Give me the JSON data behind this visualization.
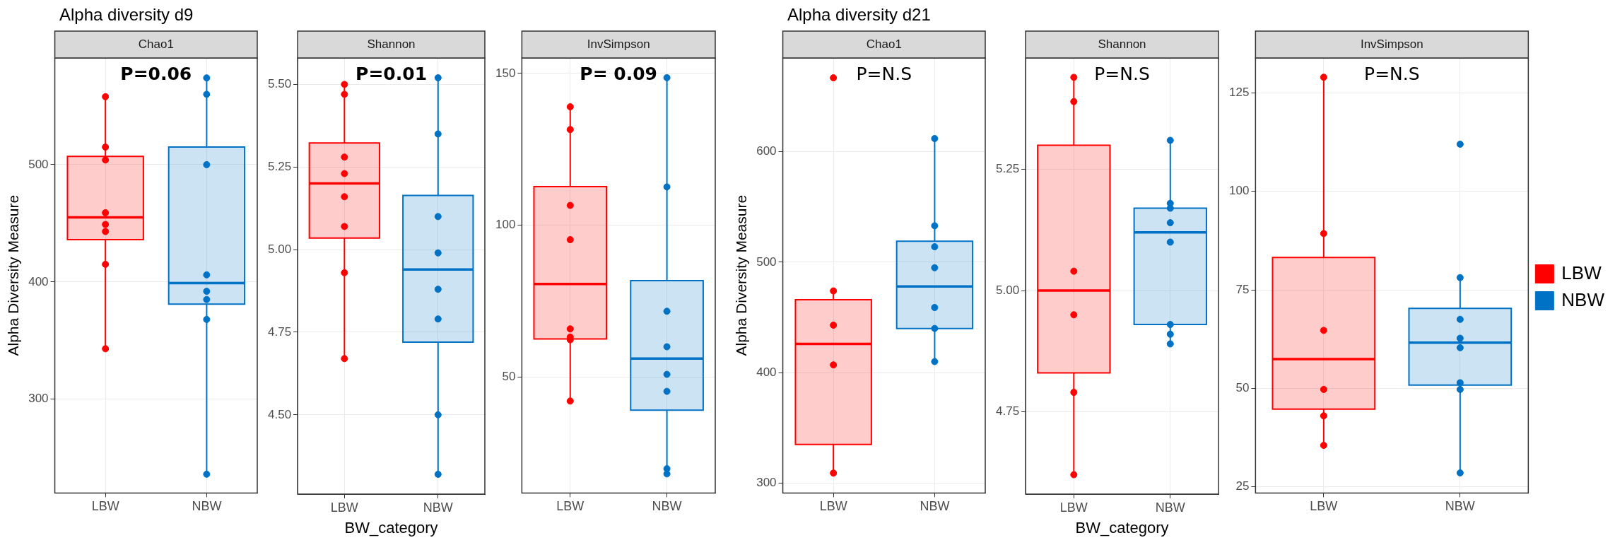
{
  "chart_data": [
    {
      "type": "box",
      "title": "Alpha diversity d9",
      "subtitle": "Chao1",
      "ylabel": "Alpha Diversity Measure",
      "categories": [
        "LBW",
        "NBW"
      ],
      "colors": [
        "#ff0000",
        "#0072c6"
      ],
      "boxes": [
        {
          "low": 343,
          "q1": 436,
          "median": 455,
          "q3": 507,
          "high": 558
        },
        {
          "low": 236,
          "q1": 381,
          "median": 399,
          "q3": 515,
          "high": 574
        }
      ],
      "series": [
        {
          "type": "scatter",
          "color": "#ff0000",
          "x": [
            "LBW",
            "LBW",
            "LBW",
            "LBW",
            "LBW",
            "LBW",
            "LBW",
            "LBW"
          ],
          "values": [
            558,
            515,
            504,
            459,
            449,
            443,
            415,
            343
          ]
        },
        {
          "type": "scatter",
          "color": "#0072c6",
          "x": [
            "NBW",
            "NBW",
            "NBW",
            "NBW",
            "NBW",
            "NBW",
            "NBW",
            "NBW"
          ],
          "values": [
            574,
            560,
            500,
            406,
            392,
            385,
            368,
            236
          ]
        }
      ],
      "ylim": [
        220,
        591
      ],
      "yticks": [
        300,
        400,
        500
      ],
      "grid": true,
      "annotations": [
        "P=0.06"
      ]
    },
    {
      "type": "box",
      "subtitle": "Shannon",
      "xlabel": "BW_category",
      "categories": [
        "LBW",
        "NBW"
      ],
      "colors": [
        "#ff0000",
        "#0072c6"
      ],
      "boxes": [
        {
          "low": 4.67,
          "q1": 5.035,
          "median": 5.2,
          "q3": 5.323,
          "high": 5.5
        },
        {
          "low": 4.32,
          "q1": 4.72,
          "median": 4.94,
          "q3": 5.164,
          "high": 5.516
        }
      ],
      "series": [
        {
          "type": "scatter",
          "color": "#ff0000",
          "x": [
            "LBW",
            "LBW",
            "LBW",
            "LBW",
            "LBW",
            "LBW",
            "LBW",
            "LBW"
          ],
          "values": [
            5.5,
            5.47,
            5.28,
            5.23,
            5.16,
            5.07,
            4.93,
            4.67
          ]
        },
        {
          "type": "scatter",
          "color": "#0072c6",
          "x": [
            "NBW",
            "NBW",
            "NBW",
            "NBW",
            "NBW",
            "NBW",
            "NBW",
            "NBW"
          ],
          "values": [
            5.52,
            5.35,
            5.1,
            4.99,
            4.88,
            4.79,
            4.5,
            4.32
          ]
        }
      ],
      "ylim": [
        4.26,
        5.58
      ],
      "yticks": [
        {
          "value": 4.5,
          "label": "4.50"
        },
        4.75,
        {
          "value": 5,
          "label": "5.00"
        },
        5.25,
        {
          "value": 5.5,
          "label": "5.50"
        }
      ],
      "grid": true,
      "annotations": [
        "P=0.01"
      ]
    },
    {
      "type": "box",
      "subtitle": "InvSimpson",
      "categories": [
        "LBW",
        "NBW"
      ],
      "colors": [
        "#ff0000",
        "#0072c6"
      ],
      "boxes": [
        {
          "low": 42,
          "q1": 62.5,
          "median": 80.6,
          "q3": 112.7,
          "high": 139
        },
        {
          "low": 18,
          "q1": 39,
          "median": 56,
          "q3": 81.7,
          "high": 148.6
        }
      ],
      "series": [
        {
          "type": "scatter",
          "color": "#ff0000",
          "x": [
            "LBW",
            "LBW",
            "LBW",
            "LBW",
            "LBW",
            "LBW",
            "LBW",
            "LBW"
          ],
          "values": [
            139,
            131.5,
            106.5,
            95.2,
            65.8,
            63.1,
            62.2,
            42
          ]
        },
        {
          "type": "scatter",
          "color": "#0072c6",
          "x": [
            "NBW",
            "NBW",
            "NBW",
            "NBW",
            "NBW",
            "NBW",
            "NBW",
            "NBW"
          ],
          "values": [
            148.6,
            112.6,
            71.6,
            59.9,
            50.8,
            45.2,
            19.7,
            18
          ]
        }
      ],
      "ylim": [
        11.7,
        155.1
      ],
      "yticks": [
        50,
        100,
        150
      ],
      "grid": true,
      "annotations": [
        "P= 0.09"
      ]
    },
    {
      "type": "box",
      "title": "Alpha diversity d21",
      "subtitle": "Chao1",
      "ylabel": "Alpha Diversity Measure",
      "categories": [
        "LBW",
        "NBW"
      ],
      "colors": [
        "#ff0000",
        "#0072c6"
      ],
      "boxes": [
        {
          "low": 309,
          "q1": 335,
          "median": 426,
          "q3": 466,
          "high": 474
        },
        {
          "low": 410,
          "q1": 440,
          "median": 478,
          "q3": 519,
          "high": 612
        }
      ],
      "series": [
        {
          "type": "scatter",
          "color": "#ff0000",
          "x": [
            "LBW",
            "LBW",
            "LBW",
            "LBW",
            "LBW"
          ],
          "values": [
            667,
            474,
            443,
            407,
            309
          ]
        },
        {
          "type": "scatter",
          "color": "#0072c6",
          "x": [
            "NBW",
            "NBW",
            "NBW",
            "NBW",
            "NBW",
            "NBW",
            "NBW"
          ],
          "values": [
            612,
            533,
            514,
            495,
            459,
            440,
            410
          ]
        }
      ],
      "ylim": [
        291,
        685
      ],
      "yticks": [
        300,
        400,
        500,
        600
      ],
      "grid": true,
      "annotations": [
        "P=N.S"
      ]
    },
    {
      "type": "box",
      "subtitle": "Shannon",
      "xlabel": "BW_category",
      "categories": [
        "LBW",
        "NBW"
      ],
      "colors": [
        "#ff0000",
        "#0072c6"
      ],
      "boxes": [
        {
          "low": 4.62,
          "q1": 4.83,
          "median": 5.0,
          "q3": 5.3,
          "high": 5.44
        },
        {
          "low": 4.89,
          "q1": 4.93,
          "median": 5.12,
          "q3": 5.17,
          "high": 5.31
        }
      ],
      "series": [
        {
          "type": "scatter",
          "color": "#ff0000",
          "x": [
            "LBW",
            "LBW",
            "LBW",
            "LBW",
            "LBW",
            "LBW"
          ],
          "values": [
            5.44,
            5.39,
            5.04,
            4.95,
            4.79,
            4.62
          ]
        },
        {
          "type": "scatter",
          "color": "#0072c6",
          "x": [
            "NBW",
            "NBW",
            "NBW",
            "NBW",
            "NBW",
            "NBW",
            "NBW",
            "NBW"
          ],
          "values": [
            5.31,
            5.18,
            5.17,
            5.14,
            5.1,
            4.93,
            4.91,
            4.89
          ]
        }
      ],
      "ylim": [
        4.58,
        5.48
      ],
      "yticks": [
        4.75,
        {
          "value": 5,
          "label": "5.00"
        },
        5.25
      ],
      "grid": true,
      "annotations": [
        "P=N.S"
      ]
    },
    {
      "type": "box",
      "subtitle": "InvSimpson",
      "categories": [
        "LBW",
        "NBW"
      ],
      "colors": [
        "#ff0000",
        "#0072c6"
      ],
      "boxes": [
        {
          "low": 35.5,
          "q1": 44.7,
          "median": 57.4,
          "q3": 83.2,
          "high": 129
        },
        {
          "low": 28.5,
          "q1": 50.8,
          "median": 61.6,
          "q3": 70.3,
          "high": 78.1
        }
      ],
      "series": [
        {
          "type": "scatter",
          "name": "LBW",
          "color": "#ff0000",
          "x": [
            "LBW",
            "LBW",
            "LBW",
            "LBW",
            "LBW",
            "LBW"
          ],
          "values": [
            129,
            89.3,
            64.7,
            49.7,
            43,
            35.5
          ]
        },
        {
          "type": "scatter",
          "name": "NBW",
          "color": "#0072c6",
          "x": [
            "NBW",
            "NBW",
            "NBW",
            "NBW",
            "NBW",
            "NBW",
            "NBW",
            "NBW"
          ],
          "values": [
            112,
            78.1,
            67.5,
            62.7,
            60.3,
            51.4,
            49.7,
            28.5
          ]
        }
      ],
      "ylim": [
        23.4,
        133.9
      ],
      "yticks": [
        25,
        50,
        75,
        100,
        125
      ],
      "grid": true,
      "legend": "right",
      "annotations": [
        "P=N.S"
      ]
    }
  ]
}
